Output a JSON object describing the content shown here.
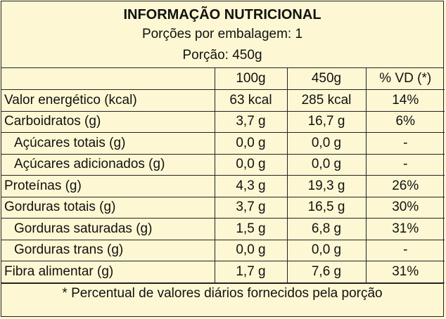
{
  "label": {
    "title": "INFORMAÇÃO NUTRICIONAL",
    "servings_per_package": "Porções por embalagem: 1",
    "serving_size": "Porção: 450g",
    "columns": [
      "",
      "100g",
      "450g",
      "% VD (*)"
    ],
    "rows": [
      {
        "name": "Valor energético (kcal)",
        "per100": "63 kcal",
        "per_serving": "285 kcal",
        "dv": "14%"
      },
      {
        "name": "Carboidratos (g)",
        "per100": "3,7 g",
        "per_serving": "16,7 g",
        "dv": "6%"
      },
      {
        "name": "Açúcares totais (g)",
        "per100": "0,0 g",
        "per_serving": "0,0 g",
        "dv": "-"
      },
      {
        "name": "Açúcares adicionados (g)",
        "per100": "0,0 g",
        "per_serving": "0,0 g",
        "dv": "-"
      },
      {
        "name": "Proteínas (g)",
        "per100": "4,3 g",
        "per_serving": "19,3 g",
        "dv": "26%"
      },
      {
        "name": "Gorduras totais (g)",
        "per100": "3,7 g",
        "per_serving": "16,5 g",
        "dv": "30%"
      },
      {
        "name": "Gorduras saturadas (g)",
        "per100": "1,5 g",
        "per_serving": "6,8 g",
        "dv": "31%"
      },
      {
        "name": "Gorduras trans (g)",
        "per100": "0,0 g",
        "per_serving": "0,0 g",
        "dv": "-"
      },
      {
        "name": "Fibra alimentar (g)",
        "per100": "1,7 g",
        "per_serving": "7,6 g",
        "dv": "31%"
      }
    ],
    "footnote": "* Percentual de valores diários fornecidos pela porção"
  }
}
